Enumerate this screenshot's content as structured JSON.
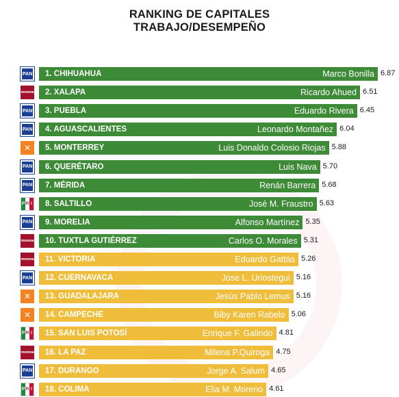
{
  "title": {
    "line1": "RANKING DE CAPITALES",
    "line2": "TRABAJO/DESEMPEÑO"
  },
  "parties": {
    "pan": {
      "icon": "pan-logo",
      "text": "PAN",
      "color": "#1c3f94"
    },
    "morena": {
      "icon": "morena-logo",
      "text": "morena",
      "color": "#a3122c"
    },
    "mc": {
      "icon": "movimiento-ciudadano-logo",
      "text": "✕",
      "color": "#f58220"
    },
    "pri": {
      "icon": "pri-logo",
      "text": [
        "P",
        "R",
        "I"
      ],
      "color": "#c8102e"
    }
  },
  "colors": {
    "top10": "#3d8b37",
    "rest": "#efbd3a"
  },
  "chart_data": {
    "type": "bar",
    "orientation": "horizontal",
    "xlim": [
      0,
      6.87
    ],
    "rows": [
      {
        "city": "1. CHIHUAHUA",
        "mayor": "Marco Bonilla",
        "score": 6.87,
        "party": "pan"
      },
      {
        "city": "2. XALAPA",
        "mayor": "Ricardo Ahued",
        "score": 6.51,
        "party": "morena"
      },
      {
        "city": "3. PUEBLA",
        "mayor": "Eduardo Rivera",
        "score": 6.45,
        "party": "pan"
      },
      {
        "city": "4. AGUASCALIENTES",
        "mayor": "Leonardo Montañez",
        "score": 6.04,
        "party": "pan"
      },
      {
        "city": "5. MONTERREY",
        "mayor": "Luis Donaldo Colosio Riojas",
        "score": 5.88,
        "party": "mc"
      },
      {
        "city": "6. QUERÉTARO",
        "mayor": "Luis Nava",
        "score": 5.7,
        "party": "pan"
      },
      {
        "city": "7. MÉRIDA",
        "mayor": "Renán Barrera",
        "score": 5.68,
        "party": "pan"
      },
      {
        "city": "8. SALTILLO",
        "mayor": "José M. Fraustro",
        "score": 5.63,
        "party": "pri"
      },
      {
        "city": "9. MORELIA",
        "mayor": "Alfonso Martínez",
        "score": 5.35,
        "party": "pan"
      },
      {
        "city": "10. TUXTLA GUTIÉRREZ",
        "mayor": "Carlos O. Morales",
        "score": 5.31,
        "party": "morena"
      },
      {
        "city": "11. VICTORIA",
        "mayor": "Eduardo Gattás",
        "score": 5.26,
        "party": "morena"
      },
      {
        "city": "12. CUERNAVACA",
        "mayor": "Jose L. Uriostegui",
        "score": 5.16,
        "party": "pan"
      },
      {
        "city": "13. GUADALAJARA",
        "mayor": "Jesús Pablo Lemus",
        "score": 5.16,
        "party": "mc"
      },
      {
        "city": "14. CAMPECHE",
        "mayor": "Biby Karen Rabelo",
        "score": 5.06,
        "party": "mc"
      },
      {
        "city": "15. SAN LUIS POTOSÍ",
        "mayor": "Enrique F. Galindo",
        "score": 4.81,
        "party": "pri"
      },
      {
        "city": "16. LA PAZ",
        "mayor": "Milena P.Quiroga",
        "score": 4.75,
        "party": "morena"
      },
      {
        "city": "17. DURANGO",
        "mayor": "Jorge A. Salum",
        "score": 4.65,
        "party": "pan"
      },
      {
        "city": "18. COLIMA",
        "mayor": "Elia M. Moreno",
        "score": 4.61,
        "party": "pri"
      }
    ]
  }
}
